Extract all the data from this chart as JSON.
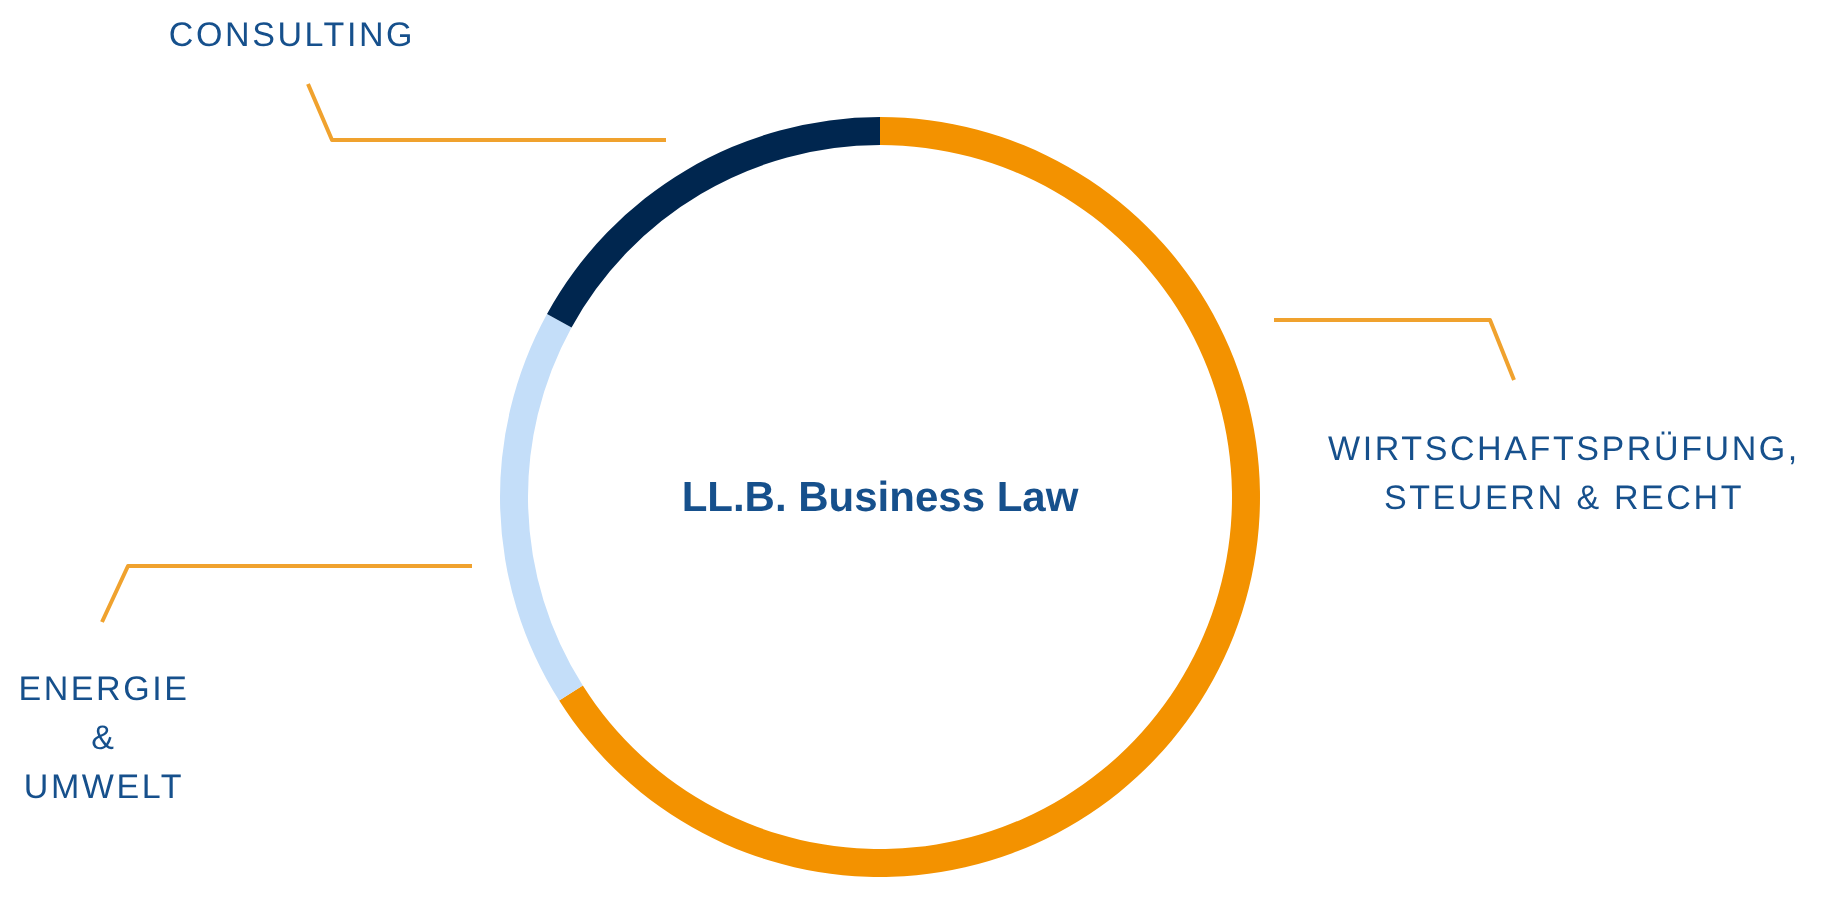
{
  "chart_data": {
    "type": "donut",
    "title": "LL.B. Business Law",
    "categories": [
      "WIRTSCHAFTSPRÜFUNG, STEUERN & RECHT",
      "ENERGIE & UMWELT",
      "CONSULTING"
    ],
    "values": [
      66,
      17,
      17
    ],
    "colors": [
      "#f39200",
      "#c4def9",
      "#00264f"
    ]
  }
}
